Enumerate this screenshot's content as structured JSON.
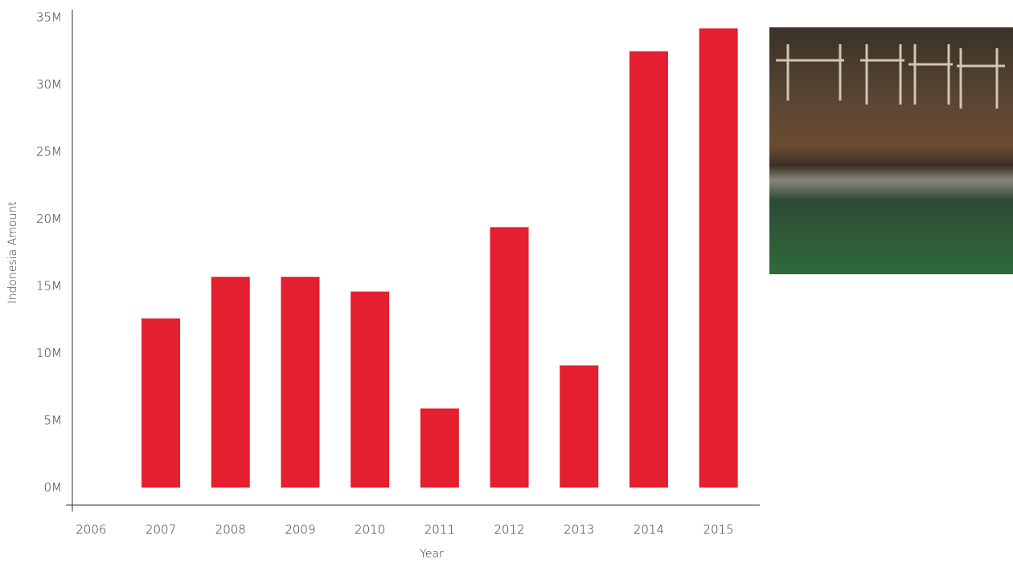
{
  "chart_data": {
    "type": "bar",
    "y_label": "Indonesia Amount",
    "x_label": "Year",
    "categories": [
      "2006",
      "2007",
      "2008",
      "2009",
      "2010",
      "2011",
      "2012",
      "2013",
      "2014",
      "2015"
    ],
    "values": [
      null,
      12600000,
      15700000,
      15700000,
      14600000,
      5900000,
      19400000,
      9100000,
      32500000,
      34200000
    ],
    "color": "#e41f2f",
    "ylim": [
      -1300000,
      35000000
    ],
    "yticks": [
      {
        "value": 0,
        "label": "0M"
      },
      {
        "value": 5000000,
        "label": "5M"
      },
      {
        "value": 10000000,
        "label": "10M"
      },
      {
        "value": 15000000,
        "label": "15M"
      },
      {
        "value": 20000000,
        "label": "20M"
      },
      {
        "value": 25000000,
        "label": "25M"
      },
      {
        "value": 30000000,
        "label": "30M"
      },
      {
        "value": 35000000,
        "label": "35M"
      }
    ],
    "grid": false
  }
}
